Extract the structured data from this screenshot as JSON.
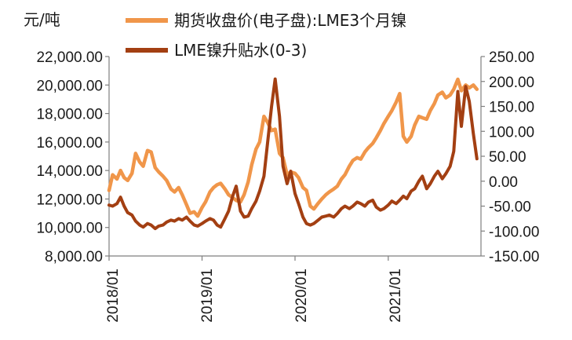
{
  "chart_data": {
    "type": "line",
    "left_unit": "元/吨",
    "legend_position": "top",
    "x_tick_labels": [
      "2018/01",
      "2019/01",
      "2020/01",
      "2021/01"
    ],
    "left_axis": {
      "range": [
        8000,
        22000
      ],
      "tick_labels": [
        "22,000.00",
        "20,000.00",
        "18,000.00",
        "16,000.00",
        "14,000.00",
        "12,000.00",
        "10,000.00",
        "8,000.00"
      ]
    },
    "right_axis": {
      "range": [
        -150,
        250
      ],
      "tick_labels": [
        "250.00",
        "200.00",
        "150.00",
        "100.00",
        "50.00",
        "0.00",
        "-50.00",
        "-100.00",
        "-150.00"
      ]
    },
    "grid": false,
    "series": [
      {
        "name": "期货收盘价(电子盘):LME3个月镍",
        "axis": "left",
        "color": "#f0964a",
        "points": [
          [
            "2018-01",
            12600
          ],
          [
            "2018-01-15",
            13700
          ],
          [
            "2018-02",
            13400
          ],
          [
            "2018-02-15",
            14000
          ],
          [
            "2018-03",
            13500
          ],
          [
            "2018-03-15",
            13300
          ],
          [
            "2018-04",
            13800
          ],
          [
            "2018-04-15",
            15200
          ],
          [
            "2018-05",
            14600
          ],
          [
            "2018-05-15",
            14300
          ],
          [
            "2018-06",
            15400
          ],
          [
            "2018-06-15",
            15300
          ],
          [
            "2018-07",
            14200
          ],
          [
            "2018-07-15",
            13900
          ],
          [
            "2018-08",
            13600
          ],
          [
            "2018-08-15",
            13300
          ],
          [
            "2018-09",
            12700
          ],
          [
            "2018-09-15",
            12500
          ],
          [
            "2018-10",
            12800
          ],
          [
            "2018-10-15",
            12300
          ],
          [
            "2018-11",
            11600
          ],
          [
            "2018-11-15",
            11000
          ],
          [
            "2018-12",
            11100
          ],
          [
            "2018-12-15",
            10800
          ],
          [
            "2019-01",
            11400
          ],
          [
            "2019-01-15",
            11800
          ],
          [
            "2019-02",
            12500
          ],
          [
            "2019-02-15",
            12800
          ],
          [
            "2019-03",
            13000
          ],
          [
            "2019-03-15",
            13100
          ],
          [
            "2019-04",
            12700
          ],
          [
            "2019-04-15",
            12300
          ],
          [
            "2019-05",
            12100
          ],
          [
            "2019-05-15",
            11900
          ],
          [
            "2019-06",
            11800
          ],
          [
            "2019-06-15",
            12300
          ],
          [
            "2019-07",
            13200
          ],
          [
            "2019-07-15",
            14400
          ],
          [
            "2019-08",
            15500
          ],
          [
            "2019-08-15",
            16000
          ],
          [
            "2019-09",
            17800
          ],
          [
            "2019-09-15",
            17400
          ],
          [
            "2019-10",
            16800
          ],
          [
            "2019-10-15",
            16900
          ],
          [
            "2019-11",
            15200
          ],
          [
            "2019-11-15",
            14900
          ],
          [
            "2019-12",
            13700
          ],
          [
            "2019-12-15",
            13900
          ],
          [
            "2020-01",
            13800
          ],
          [
            "2020-01-15",
            13500
          ],
          [
            "2020-02",
            12800
          ],
          [
            "2020-02-15",
            12600
          ],
          [
            "2020-03",
            11500
          ],
          [
            "2020-03-15",
            11300
          ],
          [
            "2020-04",
            11700
          ],
          [
            "2020-04-15",
            12000
          ],
          [
            "2020-05",
            12300
          ],
          [
            "2020-05-15",
            12500
          ],
          [
            "2020-06",
            12700
          ],
          [
            "2020-06-15",
            12900
          ],
          [
            "2020-07",
            13400
          ],
          [
            "2020-07-15",
            13700
          ],
          [
            "2020-08",
            14300
          ],
          [
            "2020-08-15",
            14700
          ],
          [
            "2020-09",
            14900
          ],
          [
            "2020-09-15",
            14800
          ],
          [
            "2020-10",
            15300
          ],
          [
            "2020-10-15",
            15600
          ],
          [
            "2020-11",
            15900
          ],
          [
            "2020-11-15",
            16300
          ],
          [
            "2020-12",
            16800
          ],
          [
            "2020-12-15",
            17300
          ],
          [
            "2021-01",
            17800
          ],
          [
            "2021-01-15",
            18200
          ],
          [
            "2021-02",
            18800
          ],
          [
            "2021-02-15",
            19400
          ],
          [
            "2021-03",
            16400
          ],
          [
            "2021-03-15",
            16000
          ],
          [
            "2021-04",
            16400
          ],
          [
            "2021-04-15",
            17200
          ],
          [
            "2021-05",
            17800
          ],
          [
            "2021-05-15",
            17700
          ],
          [
            "2021-06",
            17600
          ],
          [
            "2021-06-15",
            18200
          ],
          [
            "2021-07",
            18700
          ],
          [
            "2021-07-15",
            19300
          ],
          [
            "2021-08",
            19500
          ],
          [
            "2021-08-15",
            19100
          ],
          [
            "2021-09",
            19300
          ],
          [
            "2021-09-15",
            19700
          ],
          [
            "2021-10",
            20400
          ],
          [
            "2021-10-15",
            19600
          ],
          [
            "2021-11",
            20000
          ],
          [
            "2021-11-15",
            19800
          ],
          [
            "2021-12",
            20000
          ],
          [
            "2021-12-15",
            19700
          ]
        ]
      },
      {
        "name": "LME镍升贴水(0-3)",
        "axis": "right",
        "color": "#a33f12",
        "points": [
          [
            "2018-01",
            -48
          ],
          [
            "2018-01-15",
            -50
          ],
          [
            "2018-02",
            -45
          ],
          [
            "2018-02-15",
            -32
          ],
          [
            "2018-03",
            -50
          ],
          [
            "2018-03-15",
            -63
          ],
          [
            "2018-04",
            -68
          ],
          [
            "2018-04-15",
            -80
          ],
          [
            "2018-05",
            -88
          ],
          [
            "2018-05-15",
            -92
          ],
          [
            "2018-06",
            -85
          ],
          [
            "2018-06-15",
            -88
          ],
          [
            "2018-07",
            -95
          ],
          [
            "2018-07-15",
            -90
          ],
          [
            "2018-08",
            -88
          ],
          [
            "2018-08-15",
            -82
          ],
          [
            "2018-09",
            -78
          ],
          [
            "2018-09-15",
            -80
          ],
          [
            "2018-10",
            -75
          ],
          [
            "2018-10-15",
            -78
          ],
          [
            "2018-11",
            -72
          ],
          [
            "2018-11-15",
            -80
          ],
          [
            "2018-12",
            -88
          ],
          [
            "2018-12-15",
            -90
          ],
          [
            "2019-01",
            -85
          ],
          [
            "2019-01-15",
            -80
          ],
          [
            "2019-02",
            -75
          ],
          [
            "2019-02-15",
            -78
          ],
          [
            "2019-03",
            -88
          ],
          [
            "2019-03-15",
            -92
          ],
          [
            "2019-04",
            -75
          ],
          [
            "2019-04-15",
            -60
          ],
          [
            "2019-05",
            -30
          ],
          [
            "2019-05-15",
            -10
          ],
          [
            "2019-06",
            -60
          ],
          [
            "2019-06-15",
            -72
          ],
          [
            "2019-07",
            -70
          ],
          [
            "2019-07-15",
            -55
          ],
          [
            "2019-08",
            -40
          ],
          [
            "2019-08-15",
            -20
          ],
          [
            "2019-09",
            10
          ],
          [
            "2019-09-15",
            75
          ],
          [
            "2019-10",
            150
          ],
          [
            "2019-10-15",
            205
          ],
          [
            "2019-11",
            130
          ],
          [
            "2019-11-15",
            30
          ],
          [
            "2019-12",
            -5
          ],
          [
            "2019-12-15",
            20
          ],
          [
            "2020-01",
            -25
          ],
          [
            "2020-01-15",
            -45
          ],
          [
            "2020-02",
            -72
          ],
          [
            "2020-02-15",
            -85
          ],
          [
            "2020-03",
            -88
          ],
          [
            "2020-03-15",
            -85
          ],
          [
            "2020-04",
            -78
          ],
          [
            "2020-04-15",
            -72
          ],
          [
            "2020-05",
            -70
          ],
          [
            "2020-05-15",
            -68
          ],
          [
            "2020-06",
            -72
          ],
          [
            "2020-06-15",
            -65
          ],
          [
            "2020-07",
            -55
          ],
          [
            "2020-07-15",
            -50
          ],
          [
            "2020-08",
            -55
          ],
          [
            "2020-08-15",
            -50
          ],
          [
            "2020-09",
            -42
          ],
          [
            "2020-09-15",
            -45
          ],
          [
            "2020-10",
            -50
          ],
          [
            "2020-10-15",
            -42
          ],
          [
            "2020-11",
            -38
          ],
          [
            "2020-11-15",
            -52
          ],
          [
            "2020-12",
            -58
          ],
          [
            "2020-12-15",
            -55
          ],
          [
            "2021-01",
            -48
          ],
          [
            "2021-01-15",
            -40
          ],
          [
            "2021-02",
            -45
          ],
          [
            "2021-02-15",
            -38
          ],
          [
            "2021-03",
            -30
          ],
          [
            "2021-03-15",
            -35
          ],
          [
            "2021-04",
            -20
          ],
          [
            "2021-04-15",
            -15
          ],
          [
            "2021-05",
            0
          ],
          [
            "2021-05-15",
            10
          ],
          [
            "2021-06",
            -15
          ],
          [
            "2021-06-15",
            -5
          ],
          [
            "2021-07",
            10
          ],
          [
            "2021-07-15",
            20
          ],
          [
            "2021-08",
            5
          ],
          [
            "2021-08-15",
            15
          ],
          [
            "2021-09",
            30
          ],
          [
            "2021-09-15",
            60
          ],
          [
            "2021-10",
            180
          ],
          [
            "2021-10-15",
            110
          ],
          [
            "2021-11",
            190
          ],
          [
            "2021-11-15",
            160
          ],
          [
            "2021-12",
            95
          ],
          [
            "2021-12-15",
            45
          ]
        ]
      }
    ]
  }
}
